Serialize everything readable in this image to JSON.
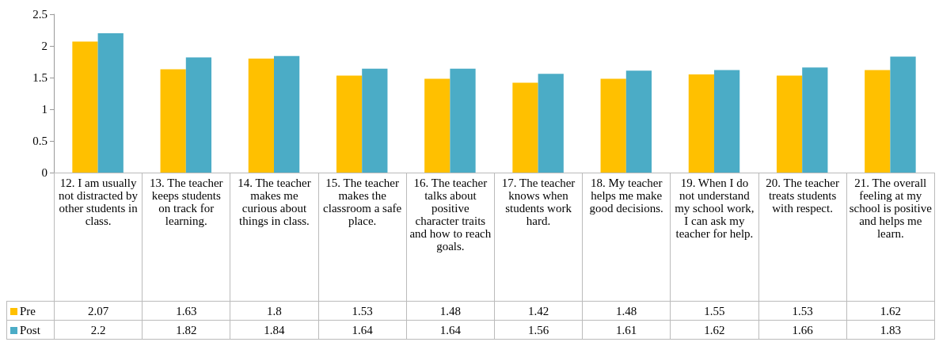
{
  "chart_data": {
    "type": "bar",
    "categories": [
      "12. I am usually not distracted by other students in class.",
      "13. The teacher keeps students on track for learning.",
      "14. The teacher makes me curious about things in class.",
      "15. The teacher makes the classroom a safe place.",
      "16. The teacher talks about positive character traits and how to reach goals.",
      "17. The teacher knows when students work hard.",
      "18. My teacher helps me make good decisions.",
      "19. When I do not understand my school work, I can ask my teacher for help.",
      "20. The teacher treats students with respect.",
      "21. The overall feeling at my school is positive and helps me learn."
    ],
    "series": [
      {
        "name": "Pre",
        "color": "#ffc000",
        "values": [
          2.07,
          1.63,
          1.8,
          1.53,
          1.48,
          1.42,
          1.48,
          1.55,
          1.53,
          1.62
        ]
      },
      {
        "name": "Post",
        "color": "#4bacc6",
        "values": [
          2.2,
          1.82,
          1.84,
          1.64,
          1.64,
          1.56,
          1.61,
          1.62,
          1.66,
          1.83
        ]
      }
    ],
    "ylim": [
      0,
      2.5
    ],
    "yticks": [
      0,
      0.5,
      1,
      1.5,
      2,
      2.5
    ],
    "grid": false,
    "legend": "bottom left",
    "data_labels": true
  }
}
